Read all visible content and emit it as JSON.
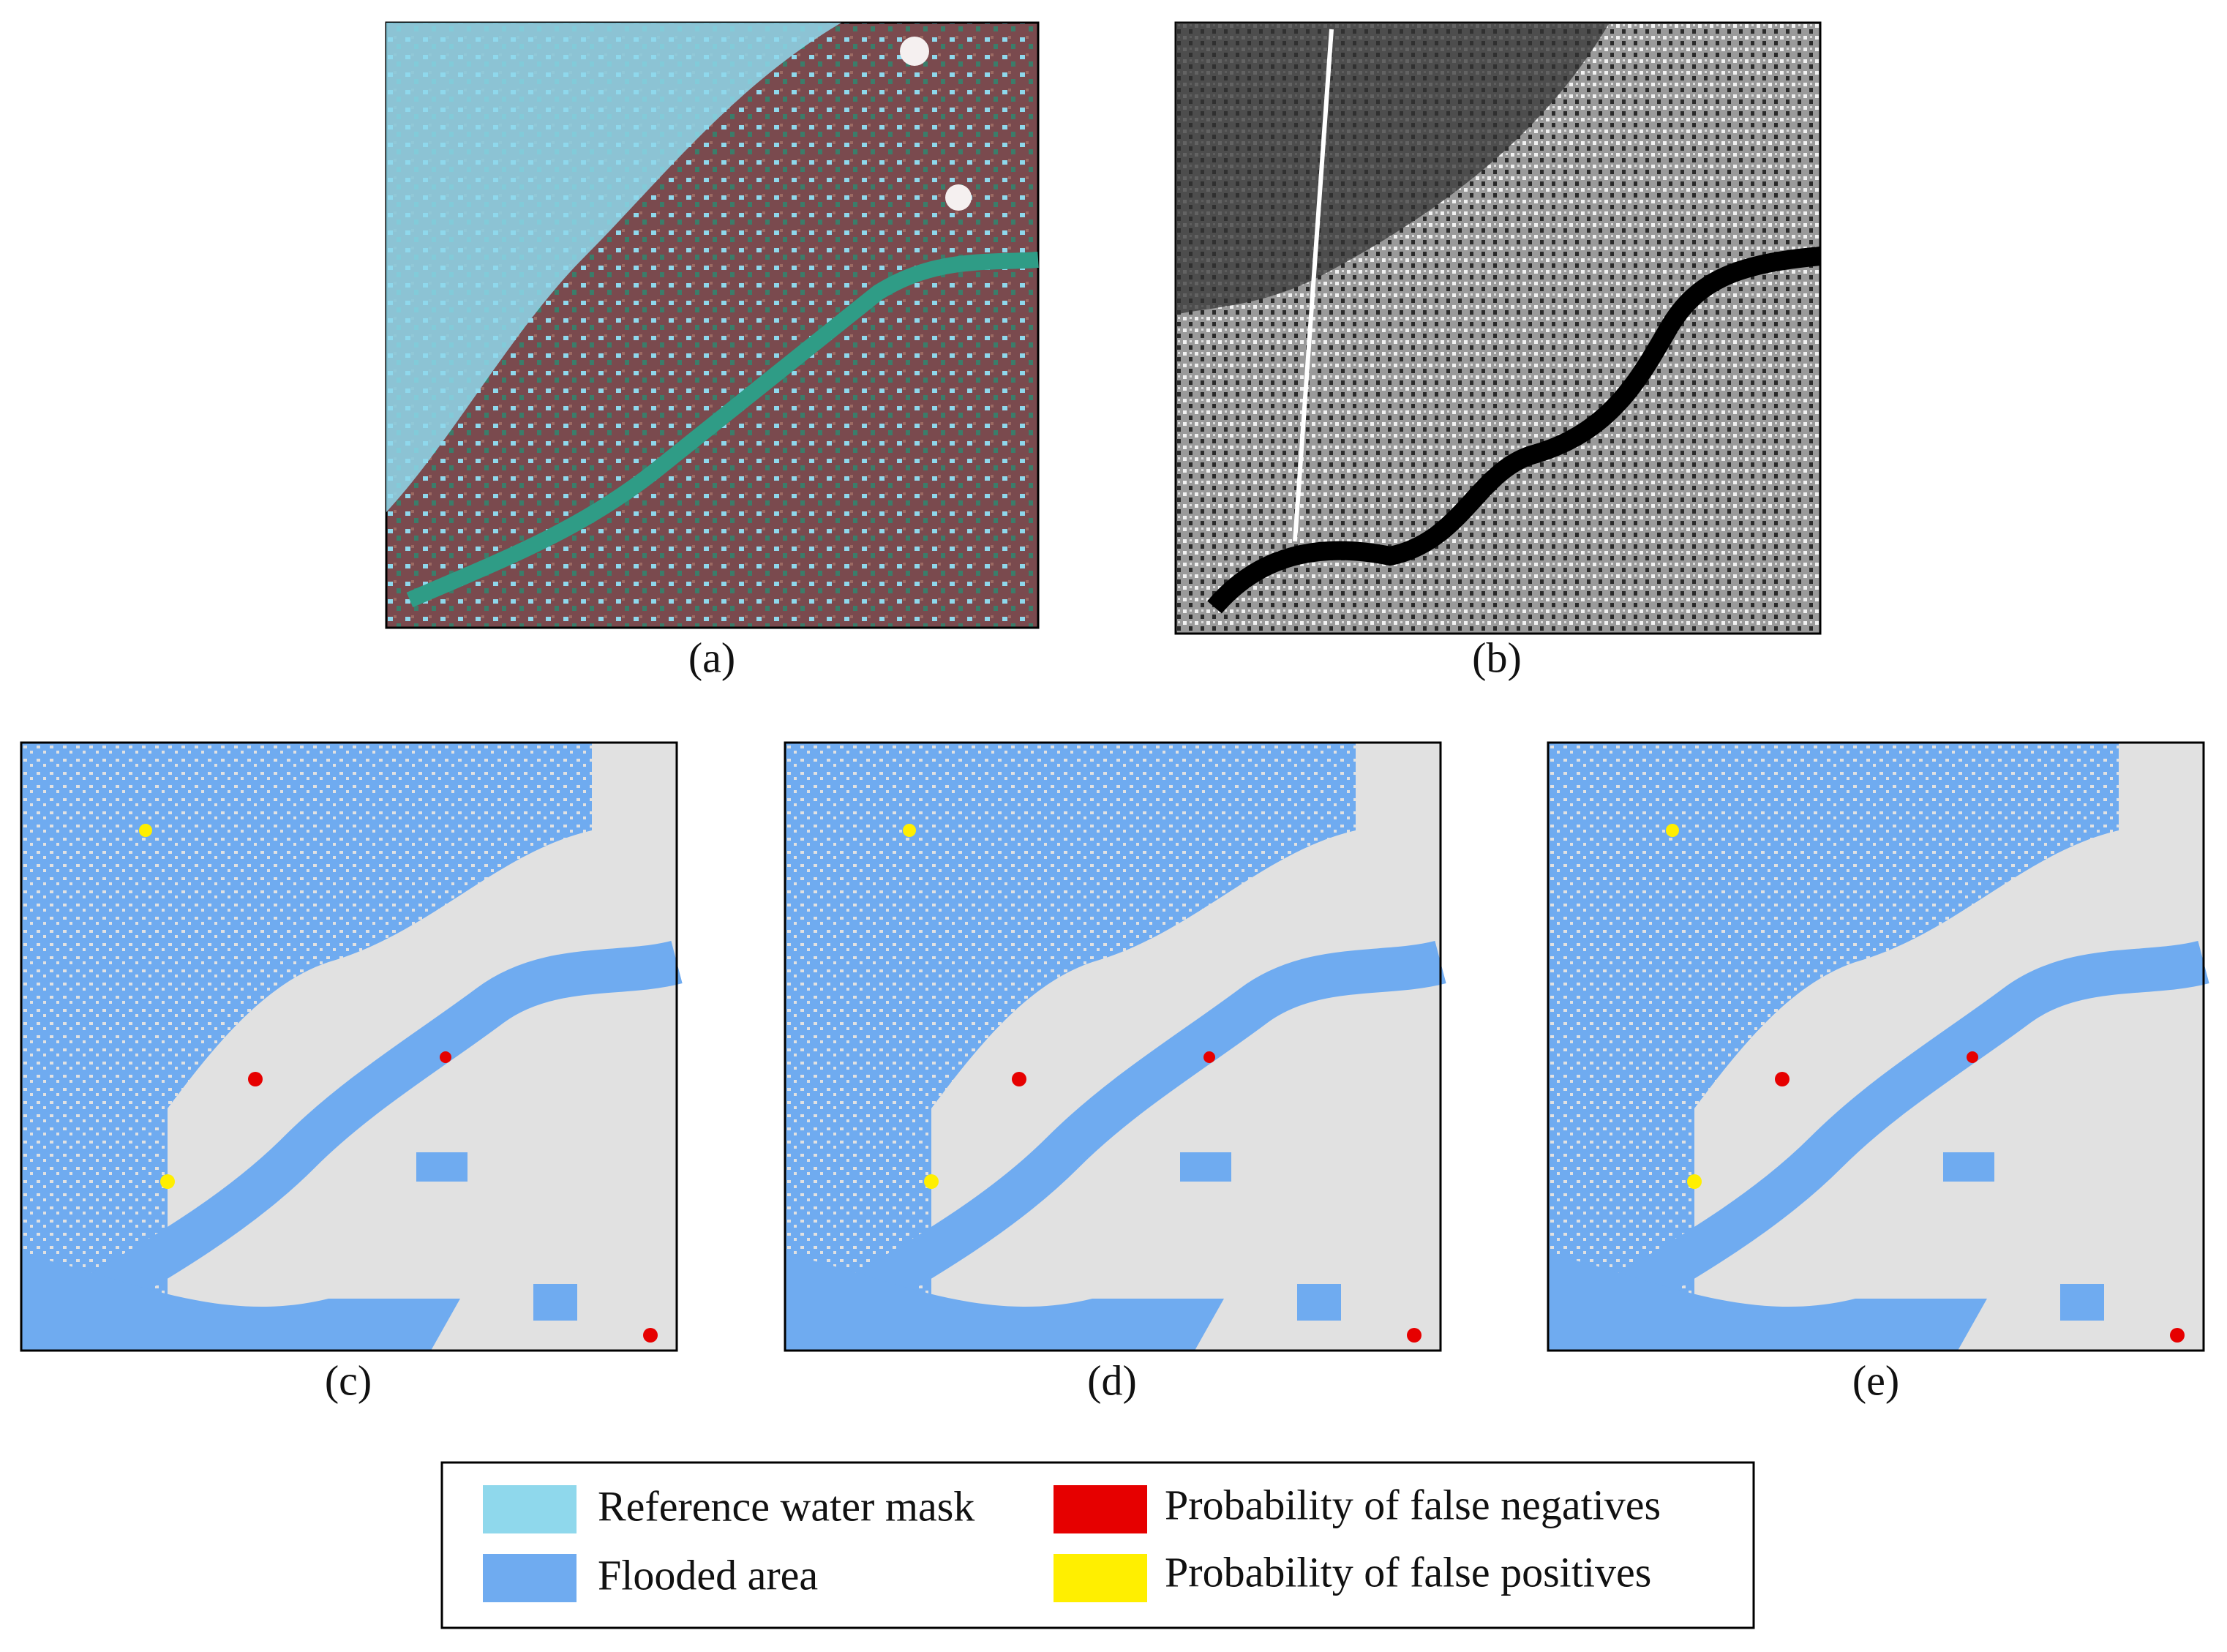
{
  "panels": [
    {
      "label": "(a)"
    },
    {
      "label": "(b)"
    },
    {
      "label": "(c)"
    },
    {
      "label": "(d)"
    },
    {
      "label": "(e)"
    }
  ],
  "legend": [
    {
      "label": "Reference water mask"
    },
    {
      "label": "Probability of false negatives"
    },
    {
      "label": "Flooded area"
    },
    {
      "label": "Probability of false positives"
    }
  ]
}
